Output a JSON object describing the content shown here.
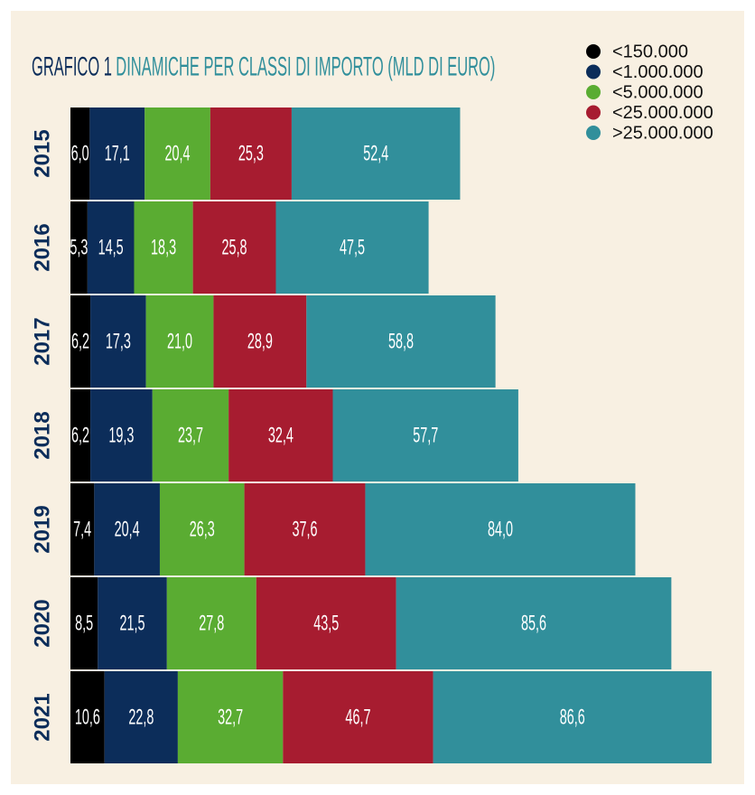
{
  "chart_data": {
    "type": "stacked-bar",
    "orientation": "horizontal",
    "title": "GRAFICO 1",
    "subtitle": "DINAMICHE PER CLASSI DI IMPORTO (MLD DI EURO)",
    "categories": [
      "2015",
      "2016",
      "2017",
      "2018",
      "2019",
      "2020",
      "2021"
    ],
    "series": [
      {
        "name": "<150.000",
        "color": "#000000",
        "values": [
          6.0,
          5.3,
          6.2,
          6.2,
          7.4,
          8.5,
          10.6
        ],
        "value_labels": [
          "6,0",
          "5,3",
          "6,2",
          "6,2",
          "7,4",
          "8,5",
          "10,6"
        ]
      },
      {
        "name": "<1.000.000",
        "color": "#0c2d5a",
        "values": [
          17.1,
          14.5,
          17.3,
          19.3,
          20.4,
          21.5,
          22.8
        ],
        "value_labels": [
          "17,1",
          "14,5",
          "17,3",
          "19,3",
          "20,4",
          "21,5",
          "22,8"
        ]
      },
      {
        "name": "<5.000.000",
        "color": "#5aac32",
        "values": [
          20.4,
          18.3,
          21.0,
          23.7,
          26.3,
          27.8,
          32.7
        ],
        "value_labels": [
          "20,4",
          "18,3",
          "21,0",
          "23,7",
          "26,3",
          "27,8",
          "32,7"
        ]
      },
      {
        "name": "<25.000.000",
        "color": "#a71c30",
        "values": [
          25.3,
          25.8,
          28.9,
          32.4,
          37.6,
          43.5,
          46.7
        ],
        "value_labels": [
          "25,3",
          "25,8",
          "28,9",
          "32,4",
          "37,6",
          "43,5",
          "46,7"
        ]
      },
      {
        "name": ">25.000.000",
        "color": "#318f9b",
        "values": [
          52.4,
          47.5,
          58.8,
          57.7,
          84.0,
          85.6,
          86.6
        ],
        "value_labels": [
          "52,4",
          "47,5",
          "58,8",
          "57,7",
          "84,0",
          "85,6",
          "86,6"
        ]
      }
    ]
  }
}
